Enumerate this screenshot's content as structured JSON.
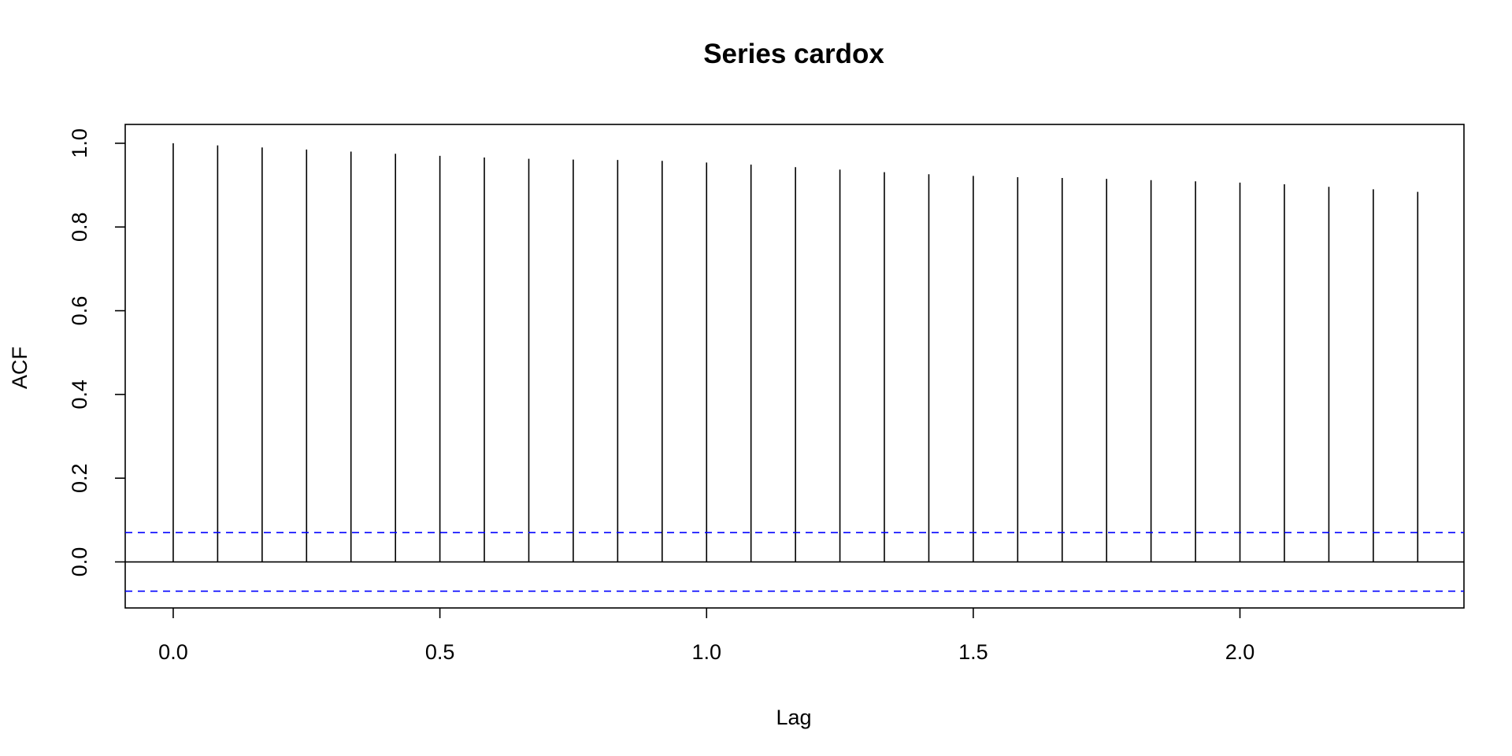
{
  "chart_data": {
    "type": "bar",
    "title": "Series  cardox",
    "xlabel": "Lag",
    "ylabel": "ACF",
    "xlim": [
      -0.09,
      2.42
    ],
    "ylim": [
      -0.11,
      1.045
    ],
    "x_ticks": [
      {
        "value": 0.0,
        "label": "0.0"
      },
      {
        "value": 0.5,
        "label": "0.5"
      },
      {
        "value": 1.0,
        "label": "1.0"
      },
      {
        "value": 1.5,
        "label": "1.5"
      },
      {
        "value": 2.0,
        "label": "2.0"
      }
    ],
    "y_ticks": [
      {
        "value": 0.0,
        "label": "0.0"
      },
      {
        "value": 0.2,
        "label": "0.2"
      },
      {
        "value": 0.4,
        "label": "0.4"
      },
      {
        "value": 0.6,
        "label": "0.6"
      },
      {
        "value": 0.8,
        "label": "0.8"
      },
      {
        "value": 1.0,
        "label": "1.0"
      }
    ],
    "lags": [
      0,
      0.0833,
      0.1667,
      0.25,
      0.3333,
      0.4167,
      0.5,
      0.5833,
      0.6667,
      0.75,
      0.8333,
      0.9167,
      1.0,
      1.0833,
      1.1667,
      1.25,
      1.3333,
      1.4167,
      1.5,
      1.5833,
      1.6667,
      1.75,
      1.8333,
      1.9167,
      2.0,
      2.0833,
      2.1667,
      2.25,
      2.3333
    ],
    "acf": [
      1.0,
      0.995,
      0.99,
      0.985,
      0.98,
      0.975,
      0.97,
      0.966,
      0.963,
      0.961,
      0.96,
      0.958,
      0.954,
      0.949,
      0.943,
      0.937,
      0.931,
      0.926,
      0.922,
      0.919,
      0.917,
      0.915,
      0.912,
      0.909,
      0.906,
      0.902,
      0.896,
      0.89,
      0.884
    ],
    "confidence_bound": 0.07,
    "grid": false,
    "colors": {
      "bars": "#000000",
      "confidence": "#0000ff",
      "axes": "#000000"
    }
  }
}
